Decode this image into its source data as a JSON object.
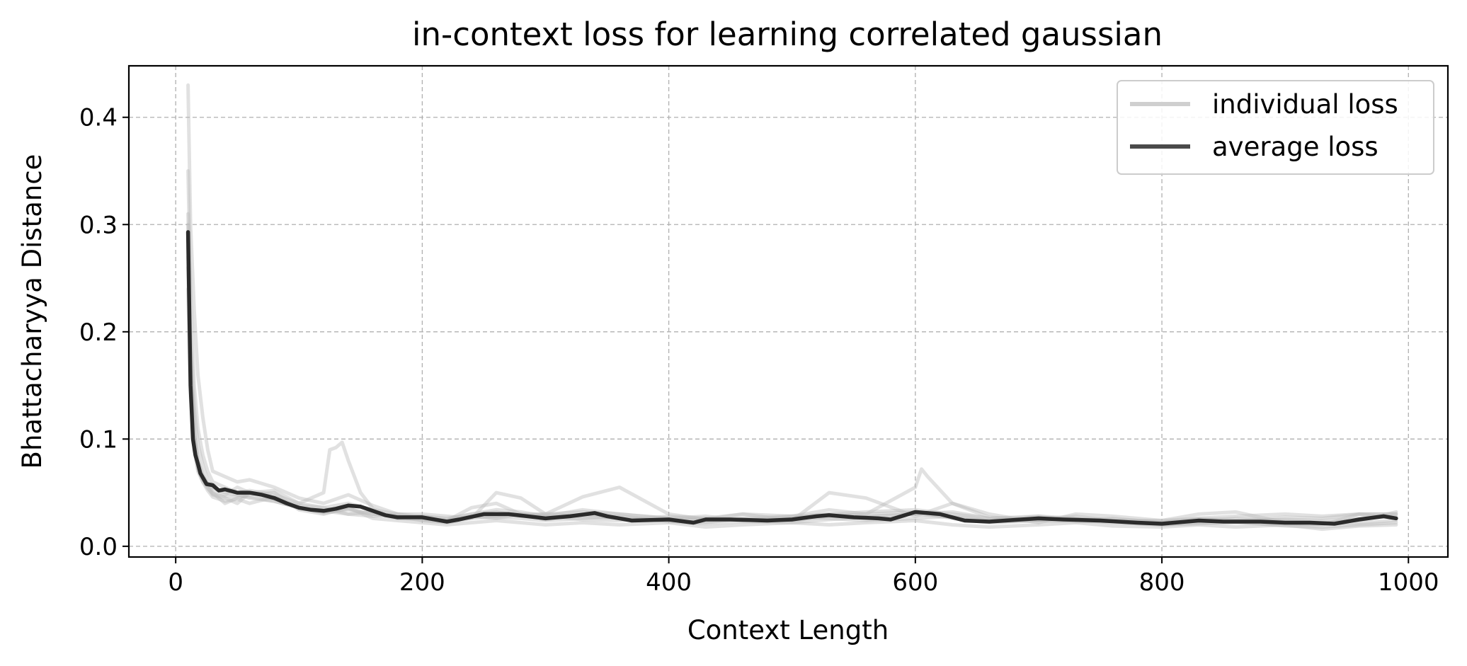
{
  "chart_data": {
    "type": "line",
    "title": "in-context loss for learning correlated gaussian",
    "xlabel": "Context Length",
    "ylabel": "Bhattacharyya Distance",
    "xlim": [
      -38,
      1032
    ],
    "ylim": [
      -0.01,
      0.448
    ],
    "xticks": [
      0,
      200,
      400,
      600,
      800,
      1000
    ],
    "yticks": [
      0.0,
      0.1,
      0.2,
      0.3,
      0.4
    ],
    "xtick_labels": [
      "0",
      "200",
      "400",
      "600",
      "800",
      "1000"
    ],
    "ytick_labels": [
      "0.0",
      "0.1",
      "0.2",
      "0.3",
      "0.4"
    ],
    "grid": true,
    "legend": {
      "position": "top-right",
      "entries": [
        "individual loss",
        "average loss"
      ]
    },
    "colors": {
      "individual": "#bdbdbd",
      "average": "#2b2b2b"
    },
    "series": [
      {
        "name": "average loss",
        "role": "average",
        "x": [
          10,
          12,
          14,
          16,
          18,
          20,
          25,
          30,
          35,
          40,
          50,
          60,
          70,
          80,
          90,
          100,
          110,
          120,
          130,
          140,
          150,
          160,
          170,
          180,
          200,
          220,
          230,
          250,
          270,
          300,
          320,
          340,
          350,
          370,
          400,
          420,
          430,
          450,
          480,
          500,
          520,
          530,
          550,
          570,
          580,
          600,
          620,
          640,
          660,
          700,
          720,
          750,
          780,
          800,
          830,
          850,
          880,
          900,
          920,
          940,
          960,
          980,
          990
        ],
        "y": [
          0.293,
          0.15,
          0.1,
          0.085,
          0.077,
          0.068,
          0.058,
          0.057,
          0.052,
          0.053,
          0.05,
          0.05,
          0.048,
          0.045,
          0.04,
          0.036,
          0.034,
          0.033,
          0.035,
          0.038,
          0.037,
          0.033,
          0.029,
          0.027,
          0.027,
          0.023,
          0.025,
          0.03,
          0.03,
          0.026,
          0.028,
          0.031,
          0.028,
          0.024,
          0.025,
          0.022,
          0.025,
          0.025,
          0.024,
          0.025,
          0.028,
          0.029,
          0.027,
          0.026,
          0.025,
          0.032,
          0.03,
          0.024,
          0.023,
          0.026,
          0.025,
          0.024,
          0.022,
          0.021,
          0.024,
          0.023,
          0.023,
          0.022,
          0.022,
          0.021,
          0.025,
          0.028,
          0.026
        ]
      },
      {
        "name": "individual loss",
        "role": "individual",
        "x": [
          10,
          12,
          15,
          18,
          22,
          26,
          30,
          40,
          50,
          60,
          80,
          100,
          120,
          140,
          160,
          180,
          200,
          220,
          240,
          260,
          280,
          300,
          330,
          360,
          400,
          430,
          460,
          500,
          530,
          560,
          600,
          630,
          660,
          700,
          730,
          760,
          800,
          830,
          860,
          900,
          930,
          960,
          990
        ],
        "y": [
          0.43,
          0.3,
          0.22,
          0.16,
          0.12,
          0.09,
          0.07,
          0.065,
          0.06,
          0.062,
          0.055,
          0.045,
          0.04,
          0.048,
          0.038,
          0.03,
          0.028,
          0.026,
          0.03,
          0.034,
          0.032,
          0.028,
          0.034,
          0.03,
          0.026,
          0.028,
          0.024,
          0.026,
          0.03,
          0.028,
          0.03,
          0.032,
          0.026,
          0.024,
          0.026,
          0.025,
          0.023,
          0.025,
          0.024,
          0.025,
          0.024,
          0.026,
          0.028
        ]
      },
      {
        "role": "individual",
        "x": [
          10,
          12,
          15,
          18,
          22,
          26,
          30,
          40,
          50,
          60,
          80,
          100,
          120,
          125,
          130,
          135,
          140,
          150,
          160,
          180,
          200,
          220,
          240,
          260,
          280,
          300,
          330,
          360,
          400,
          430,
          460,
          500,
          530,
          560,
          600,
          605,
          610,
          630,
          660,
          700,
          730,
          760,
          800,
          830,
          860,
          900,
          930,
          960,
          990
        ],
        "y": [
          0.35,
          0.24,
          0.15,
          0.11,
          0.085,
          0.07,
          0.06,
          0.055,
          0.05,
          0.052,
          0.048,
          0.04,
          0.05,
          0.09,
          0.092,
          0.097,
          0.08,
          0.05,
          0.035,
          0.026,
          0.025,
          0.024,
          0.036,
          0.04,
          0.03,
          0.025,
          0.03,
          0.026,
          0.024,
          0.026,
          0.024,
          0.028,
          0.034,
          0.03,
          0.055,
          0.072,
          0.065,
          0.04,
          0.027,
          0.025,
          0.028,
          0.024,
          0.022,
          0.026,
          0.024,
          0.027,
          0.026,
          0.03,
          0.03
        ]
      },
      {
        "role": "individual",
        "x": [
          10,
          12,
          15,
          18,
          22,
          26,
          30,
          40,
          50,
          60,
          80,
          100,
          120,
          140,
          160,
          180,
          200,
          220,
          240,
          260,
          280,
          300,
          330,
          360,
          400,
          430,
          460,
          500,
          530,
          560,
          600,
          630,
          660,
          700,
          730,
          760,
          800,
          830,
          860,
          900,
          930,
          960,
          990
        ],
        "y": [
          0.31,
          0.2,
          0.13,
          0.095,
          0.075,
          0.062,
          0.055,
          0.05,
          0.048,
          0.045,
          0.042,
          0.036,
          0.032,
          0.034,
          0.03,
          0.028,
          0.024,
          0.022,
          0.026,
          0.05,
          0.045,
          0.03,
          0.046,
          0.055,
          0.03,
          0.025,
          0.03,
          0.024,
          0.05,
          0.045,
          0.028,
          0.04,
          0.03,
          0.022,
          0.03,
          0.028,
          0.024,
          0.03,
          0.032,
          0.022,
          0.02,
          0.03,
          0.026
        ]
      },
      {
        "role": "individual",
        "x": [
          10,
          12,
          15,
          18,
          22,
          26,
          30,
          40,
          50,
          60,
          80,
          100,
          120,
          140,
          160,
          180,
          200,
          220,
          240,
          260,
          280,
          300,
          330,
          360,
          400,
          430,
          460,
          500,
          530,
          560,
          600,
          630,
          660,
          700,
          730,
          760,
          800,
          830,
          860,
          900,
          930,
          960,
          990
        ],
        "y": [
          0.28,
          0.18,
          0.11,
          0.08,
          0.065,
          0.058,
          0.05,
          0.04,
          0.045,
          0.048,
          0.05,
          0.034,
          0.03,
          0.036,
          0.026,
          0.024,
          0.022,
          0.02,
          0.022,
          0.024,
          0.022,
          0.02,
          0.022,
          0.02,
          0.022,
          0.018,
          0.02,
          0.022,
          0.02,
          0.022,
          0.024,
          0.02,
          0.018,
          0.02,
          0.022,
          0.019,
          0.018,
          0.02,
          0.018,
          0.02,
          0.016,
          0.019,
          0.02
        ]
      },
      {
        "role": "individual",
        "x": [
          10,
          12,
          15,
          18,
          22,
          26,
          30,
          40,
          50,
          60,
          80,
          100,
          120,
          140,
          160,
          180,
          200,
          220,
          240,
          260,
          280,
          300,
          330,
          360,
          400,
          430,
          460,
          500,
          530,
          560,
          600,
          630,
          660,
          700,
          730,
          760,
          800,
          830,
          860,
          900,
          930,
          960,
          990
        ],
        "y": [
          0.26,
          0.16,
          0.1,
          0.075,
          0.062,
          0.055,
          0.048,
          0.045,
          0.04,
          0.05,
          0.052,
          0.04,
          0.036,
          0.03,
          0.028,
          0.03,
          0.026,
          0.024,
          0.028,
          0.026,
          0.03,
          0.028,
          0.025,
          0.024,
          0.028,
          0.026,
          0.03,
          0.028,
          0.026,
          0.024,
          0.026,
          0.028,
          0.024,
          0.028,
          0.024,
          0.026,
          0.022,
          0.024,
          0.026,
          0.024,
          0.022,
          0.024,
          0.032
        ]
      },
      {
        "role": "individual",
        "x": [
          10,
          12,
          15,
          18,
          22,
          26,
          30,
          40,
          50,
          60,
          80,
          100,
          120,
          140,
          160,
          180,
          200,
          220,
          240,
          260,
          280,
          300,
          330,
          360,
          400,
          430,
          460,
          500,
          530,
          560,
          600,
          630,
          660,
          700,
          730,
          760,
          800,
          830,
          860,
          900,
          930,
          960,
          990
        ],
        "y": [
          0.24,
          0.14,
          0.09,
          0.07,
          0.06,
          0.052,
          0.046,
          0.042,
          0.044,
          0.04,
          0.046,
          0.035,
          0.033,
          0.03,
          0.032,
          0.026,
          0.028,
          0.025,
          0.03,
          0.032,
          0.028,
          0.03,
          0.028,
          0.026,
          0.024,
          0.022,
          0.026,
          0.024,
          0.028,
          0.03,
          0.032,
          0.026,
          0.022,
          0.024,
          0.025,
          0.022,
          0.02,
          0.021,
          0.022,
          0.02,
          0.021,
          0.022,
          0.024
        ]
      },
      {
        "role": "individual",
        "x": [
          10,
          12,
          15,
          18,
          22,
          26,
          30,
          40,
          50,
          60,
          80,
          100,
          120,
          140,
          160,
          180,
          200,
          220,
          240,
          260,
          280,
          300,
          330,
          360,
          400,
          430,
          460,
          500,
          530,
          560,
          600,
          630,
          660,
          700,
          730,
          760,
          800,
          830,
          860,
          900,
          930,
          960,
          990
        ],
        "y": [
          0.3,
          0.17,
          0.105,
          0.08,
          0.066,
          0.058,
          0.052,
          0.048,
          0.055,
          0.05,
          0.044,
          0.038,
          0.036,
          0.04,
          0.034,
          0.03,
          0.03,
          0.028,
          0.026,
          0.028,
          0.03,
          0.03,
          0.032,
          0.03,
          0.026,
          0.024,
          0.026,
          0.028,
          0.03,
          0.032,
          0.034,
          0.03,
          0.026,
          0.028,
          0.026,
          0.024,
          0.024,
          0.026,
          0.028,
          0.03,
          0.028,
          0.03,
          0.03
        ]
      },
      {
        "role": "individual",
        "x": [
          10,
          12,
          15,
          18,
          22,
          26,
          30,
          40,
          50,
          60,
          80,
          100,
          120,
          140,
          160,
          180,
          200,
          220,
          240,
          260,
          280,
          300,
          330,
          360,
          400,
          430,
          460,
          500,
          530,
          560,
          600,
          630,
          660,
          700,
          730,
          760,
          800,
          830,
          860,
          900,
          930,
          960,
          990
        ],
        "y": [
          0.27,
          0.155,
          0.095,
          0.072,
          0.06,
          0.054,
          0.049,
          0.046,
          0.047,
          0.046,
          0.042,
          0.036,
          0.031,
          0.035,
          0.03,
          0.027,
          0.025,
          0.023,
          0.028,
          0.027,
          0.026,
          0.024,
          0.026,
          0.028,
          0.023,
          0.021,
          0.023,
          0.022,
          0.025,
          0.027,
          0.03,
          0.027,
          0.023,
          0.024,
          0.023,
          0.023,
          0.02,
          0.022,
          0.023,
          0.019,
          0.018,
          0.02,
          0.022
        ]
      }
    ]
  }
}
